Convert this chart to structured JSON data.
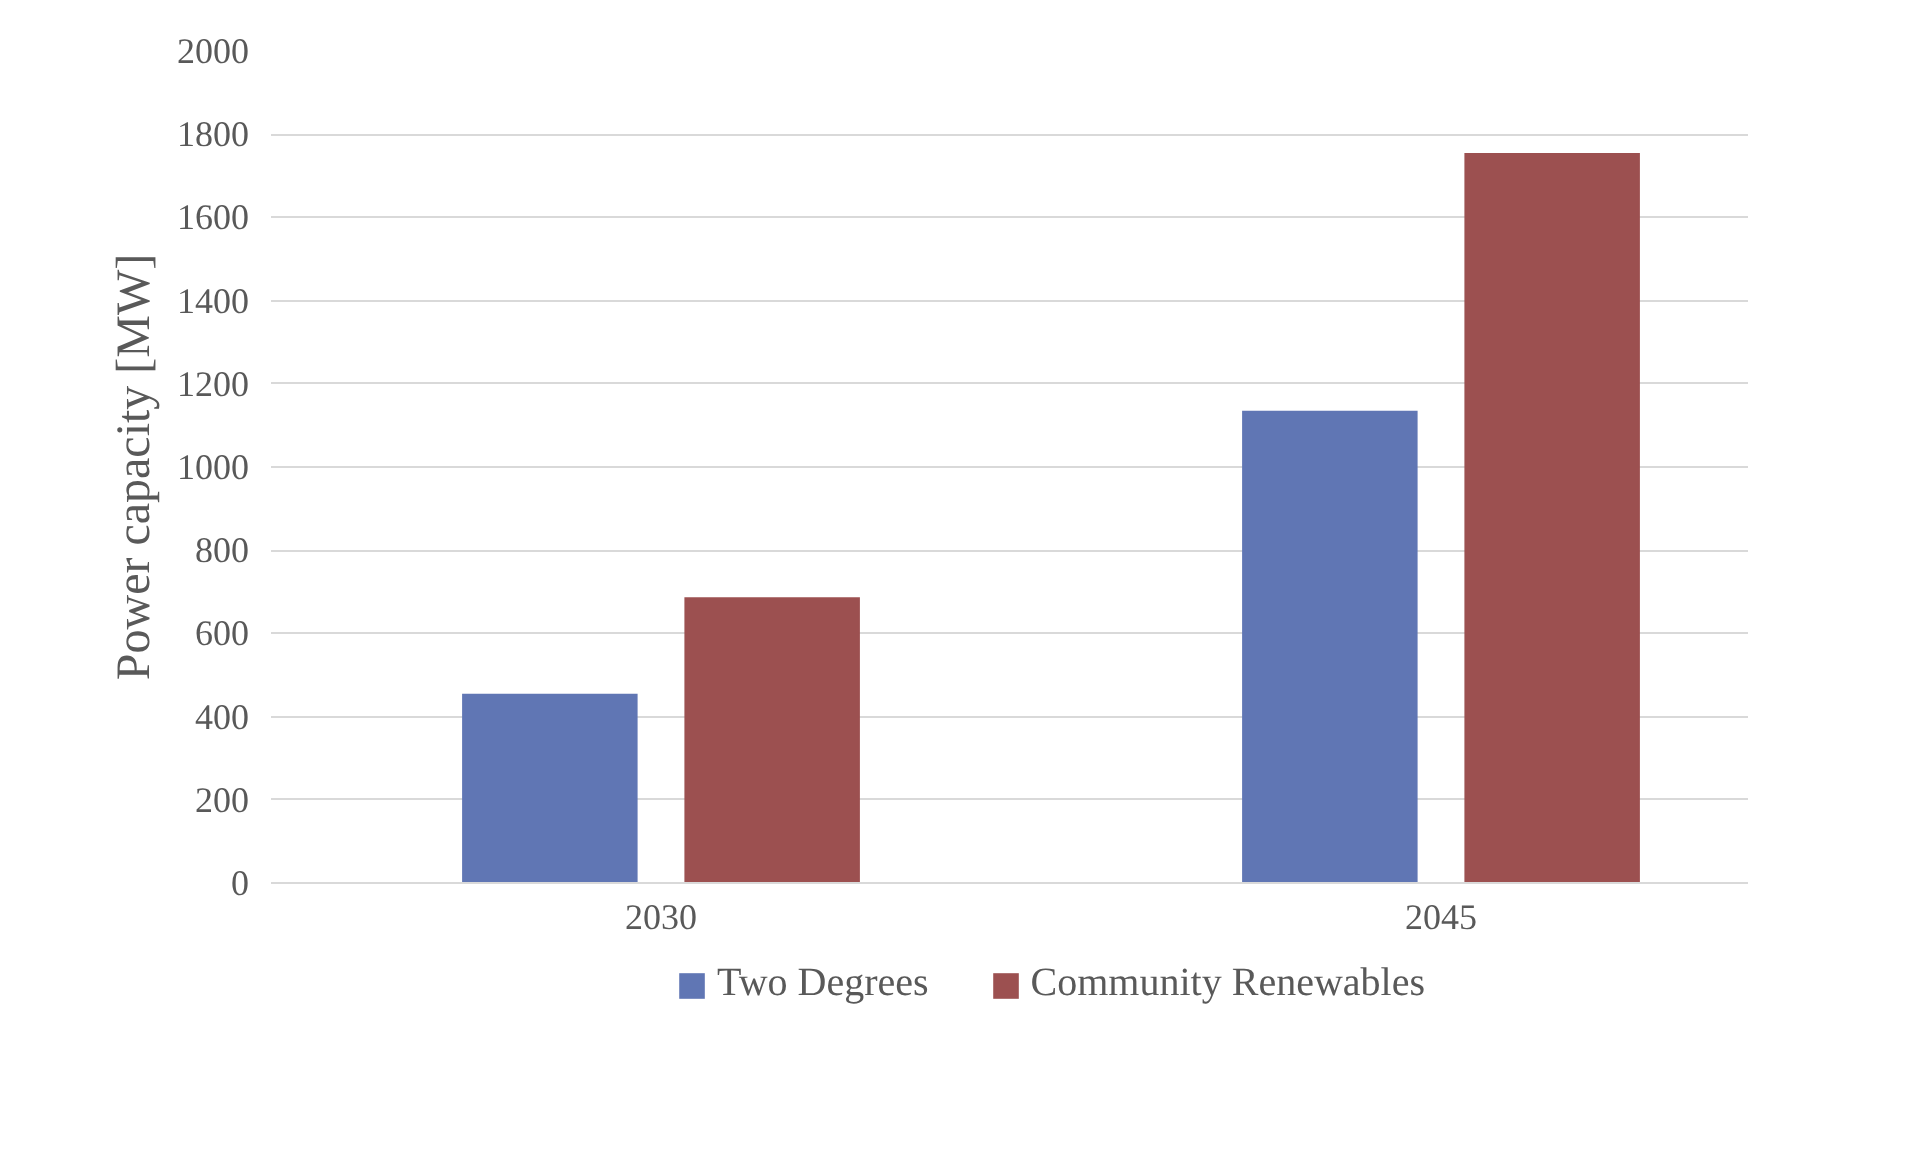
{
  "chart_data": {
    "type": "bar",
    "ylabel": "Power capacity [MW]",
    "categories": [
      "2030",
      "2045"
    ],
    "series": [
      {
        "name": "Two Degrees",
        "color": "#6076b4",
        "values": [
          455,
          1135
        ]
      },
      {
        "name": "Community Renewables",
        "color": "#9c5050",
        "values": [
          687,
          1755
        ]
      }
    ],
    "ylim": [
      0,
      2000
    ],
    "yticks": [
      0,
      200,
      400,
      600,
      800,
      1000,
      1200,
      1400,
      1600,
      1800,
      2000
    ],
    "grid": "y",
    "legend": "bottom"
  }
}
